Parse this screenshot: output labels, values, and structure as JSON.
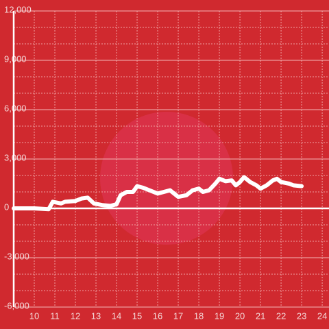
{
  "chart_data": {
    "type": "line",
    "x": [
      9,
      10,
      10.7,
      10.9,
      11.3,
      11.5,
      12,
      12.3,
      12.6,
      12.9,
      13.3,
      13.7,
      14,
      14.2,
      14.5,
      14.8,
      15,
      15.3,
      15.6,
      16,
      16.3,
      16.6,
      17,
      17.4,
      17.7,
      18,
      18.2,
      18.5,
      18.8,
      19,
      19.3,
      19.6,
      19.8,
      20,
      20.2,
      20.5,
      20.8,
      21,
      21.3,
      21.6,
      21.8,
      22,
      22.4,
      22.6,
      23
    ],
    "values": [
      0,
      0,
      -50,
      400,
      300,
      400,
      450,
      600,
      650,
      300,
      200,
      150,
      250,
      800,
      1000,
      1000,
      1350,
      1250,
      1100,
      900,
      1000,
      1100,
      700,
      800,
      1100,
      1200,
      1000,
      1100,
      1500,
      1800,
      1650,
      1700,
      1400,
      1600,
      1900,
      1600,
      1400,
      1200,
      1400,
      1700,
      1800,
      1600,
      1500,
      1400,
      1350
    ],
    "color": "#ffffff",
    "xlim": [
      9,
      24.33
    ],
    "xticks": [
      10,
      11,
      12,
      13,
      14,
      15,
      16,
      17,
      18,
      19,
      20,
      21,
      22,
      23,
      24
    ],
    "ylim": [
      -6000,
      12000
    ],
    "yticks": [
      {
        "value": -6000,
        "label": "-6,000"
      },
      {
        "value": -3000,
        "label": "-3,000"
      },
      0,
      {
        "value": 3000,
        "label": "3,000"
      },
      {
        "value": 6000,
        "label": "6,000"
      },
      {
        "value": 9000,
        "label": "9,000"
      },
      {
        "value": 12000,
        "label": "12,000"
      }
    ],
    "yminorticks": [
      -5000,
      -4000,
      -2000,
      -1000,
      1000,
      2000,
      4000,
      5000,
      7000,
      8000,
      10000,
      11000
    ],
    "grid": true
  }
}
